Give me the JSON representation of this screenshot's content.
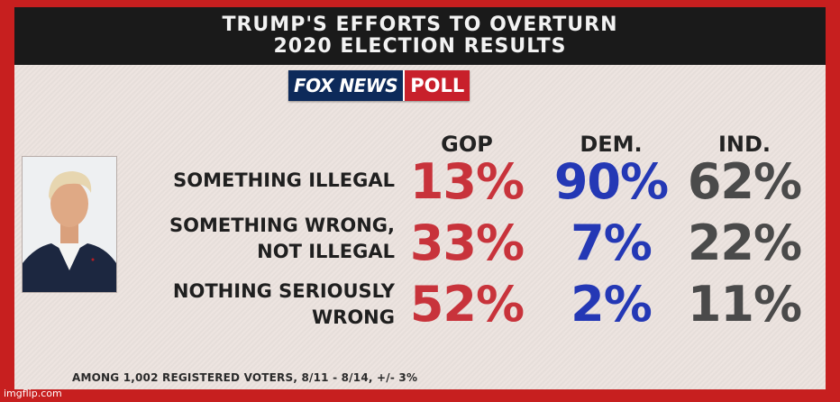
{
  "title_line1": "TRUMP'S EFFORTS TO OVERTURN",
  "title_line2": "2020 ELECTION RESULTS",
  "logo": {
    "brand": "FOX NEWS",
    "tag": "POLL"
  },
  "colors": {
    "gop": "#c8333b",
    "dem": "#2438b5",
    "ind": "#4a4a4a"
  },
  "chart_data": {
    "type": "table",
    "title": "TRUMP'S EFFORTS TO OVERTURN 2020 ELECTION RESULTS",
    "columns": [
      "GOP",
      "DEM.",
      "IND."
    ],
    "rows": [
      {
        "label_lines": [
          "SOMETHING ILLEGAL"
        ],
        "values": [
          "13%",
          "90%",
          "62%"
        ]
      },
      {
        "label_lines": [
          "SOMETHING WRONG,",
          "NOT ILLEGAL"
        ],
        "values": [
          "33%",
          "7%",
          "22%"
        ]
      },
      {
        "label_lines": [
          "NOTHING SERIOUSLY",
          "WRONG"
        ],
        "values": [
          "52%",
          "2%",
          "11%"
        ]
      }
    ]
  },
  "footnote": "AMONG 1,002 REGISTERED VOTERS, 8/11 - 8/14, +/- 3%",
  "watermark": "imgflip.com"
}
